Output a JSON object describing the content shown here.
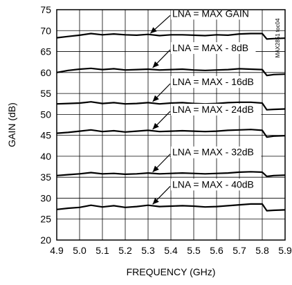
{
  "chart_data": {
    "type": "line",
    "title": "",
    "xlabel": "FREQUENCY (GHz)",
    "ylabel": "GAIN (dB)",
    "xlim": [
      4.9,
      5.9
    ],
    "ylim": [
      20,
      75
    ],
    "xticks": [
      "4.9",
      "5.0",
      "5.1",
      "5.2",
      "5.3",
      "5.4",
      "5.5",
      "5.6",
      "5.7",
      "5.8",
      "5.9"
    ],
    "yticks": [
      "20",
      "25",
      "30",
      "35",
      "40",
      "45",
      "50",
      "55",
      "60",
      "65",
      "70",
      "75"
    ],
    "grid": true,
    "side_label": "MAX2851 toc04",
    "series": [
      {
        "name": "LNA = MAX GAIN",
        "x": [
          4.9,
          4.95,
          5.0,
          5.05,
          5.1,
          5.15,
          5.2,
          5.25,
          5.3,
          5.35,
          5.4,
          5.45,
          5.5,
          5.55,
          5.6,
          5.65,
          5.7,
          5.75,
          5.8,
          5.82,
          5.85,
          5.9
        ],
        "y": [
          68.3,
          68.6,
          68.9,
          69.3,
          69.0,
          69.2,
          69.0,
          68.9,
          69.1,
          68.8,
          69.0,
          69.0,
          68.9,
          68.8,
          69.0,
          68.9,
          69.2,
          69.3,
          69.3,
          68.0,
          68.1,
          68.2
        ]
      },
      {
        "name": "LNA = MAX - 8dB",
        "x": [
          4.9,
          4.95,
          5.0,
          5.05,
          5.1,
          5.15,
          5.2,
          5.25,
          5.3,
          5.35,
          5.4,
          5.45,
          5.5,
          5.55,
          5.6,
          5.65,
          5.7,
          5.75,
          5.8,
          5.82,
          5.85,
          5.9
        ],
        "y": [
          60.0,
          60.5,
          60.8,
          61.0,
          60.7,
          60.9,
          60.6,
          60.7,
          60.8,
          60.6,
          60.7,
          60.8,
          60.6,
          60.5,
          60.6,
          60.7,
          60.9,
          60.8,
          60.7,
          59.3,
          59.5,
          59.6
        ]
      },
      {
        "name": "LNA = MAX - 16dB",
        "x": [
          4.9,
          4.95,
          5.0,
          5.05,
          5.1,
          5.15,
          5.2,
          5.25,
          5.3,
          5.35,
          5.4,
          5.45,
          5.5,
          5.55,
          5.6,
          5.65,
          5.7,
          5.75,
          5.8,
          5.82,
          5.85,
          5.9
        ],
        "y": [
          52.5,
          52.6,
          52.7,
          53.0,
          52.6,
          52.8,
          52.5,
          52.6,
          52.8,
          52.5,
          52.7,
          52.8,
          52.6,
          52.5,
          52.6,
          52.8,
          52.9,
          52.9,
          52.7,
          51.1,
          51.2,
          51.3
        ]
      },
      {
        "name": "LNA = MAX - 24dB",
        "x": [
          4.9,
          4.95,
          5.0,
          5.05,
          5.1,
          5.15,
          5.2,
          5.25,
          5.3,
          5.35,
          5.4,
          5.45,
          5.5,
          5.55,
          5.6,
          5.65,
          5.7,
          5.75,
          5.8,
          5.82,
          5.85,
          5.9
        ],
        "y": [
          45.5,
          45.7,
          46.0,
          46.3,
          45.9,
          46.1,
          45.8,
          46.0,
          46.2,
          45.9,
          46.0,
          46.1,
          46.0,
          45.9,
          46.0,
          46.2,
          46.3,
          46.4,
          46.2,
          44.6,
          44.8,
          44.9
        ]
      },
      {
        "name": "LNA = MAX - 32dB",
        "x": [
          4.9,
          4.95,
          5.0,
          5.05,
          5.1,
          5.15,
          5.2,
          5.25,
          5.3,
          5.35,
          5.4,
          5.45,
          5.5,
          5.55,
          5.6,
          5.65,
          5.7,
          5.75,
          5.8,
          5.82,
          5.85,
          5.9
        ],
        "y": [
          35.4,
          35.6,
          35.8,
          36.1,
          35.8,
          35.9,
          35.7,
          35.8,
          36.0,
          35.8,
          35.9,
          36.0,
          35.9,
          35.8,
          35.9,
          36.0,
          36.2,
          36.3,
          36.2,
          35.2,
          35.4,
          35.5
        ]
      },
      {
        "name": "LNA = MAX - 40dB",
        "x": [
          4.9,
          4.95,
          5.0,
          5.05,
          5.1,
          5.15,
          5.2,
          5.25,
          5.3,
          5.35,
          5.4,
          5.45,
          5.5,
          5.55,
          5.6,
          5.65,
          5.7,
          5.75,
          5.8,
          5.82,
          5.85,
          5.9
        ],
        "y": [
          27.3,
          27.6,
          27.8,
          28.3,
          27.9,
          28.2,
          27.8,
          28.0,
          28.3,
          28.0,
          28.1,
          28.2,
          28.1,
          27.9,
          28.0,
          28.2,
          28.4,
          28.6,
          28.6,
          27.0,
          27.1,
          27.2
        ]
      }
    ],
    "annotations": [
      {
        "text": "LNA = MAX GAIN",
        "target": [
          5.31,
          69.0
        ]
      },
      {
        "text": "LNA = MAX - 8dB",
        "target": [
          5.32,
          60.8
        ]
      },
      {
        "text": "LNA = MAX - 16dB",
        "target": [
          5.32,
          52.7
        ]
      },
      {
        "text": "LNA = MAX - 24dB",
        "target": [
          5.32,
          46.1
        ]
      },
      {
        "text": "LNA = MAX - 32dB",
        "target": [
          5.32,
          35.9
        ]
      },
      {
        "text": "LNA = MAX - 40dB",
        "target": [
          5.32,
          28.2
        ]
      }
    ]
  }
}
